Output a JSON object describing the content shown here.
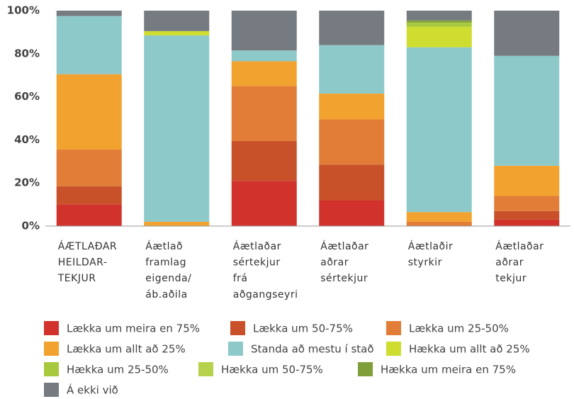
{
  "chart_data": {
    "type": "stacked_bar",
    "categories": [
      [
        "ÁÆTLAÐAR",
        "HEILDAR-",
        "TEKJUR"
      ],
      [
        "Áætlað",
        "framlag",
        "eigenda/",
        "áb.aðila"
      ],
      [
        "Áætlaðar",
        "sértekjur",
        "frá",
        "aðgangseyri"
      ],
      [
        "Áætlaðar",
        "aðrar",
        "sértekjur"
      ],
      [
        "Áætlaðir",
        "styrkir"
      ],
      [
        "Áætlaðar",
        "aðrar",
        "tekjur"
      ]
    ],
    "series": [
      {
        "name": "Lækka um meira en 75%",
        "color": "#d1332c",
        "values": [
          10,
          0,
          21,
          12,
          0,
          3
        ]
      },
      {
        "name": "Lækka um 50-75%",
        "color": "#c9512a",
        "values": [
          8.5,
          0,
          18.5,
          16.5,
          0,
          4
        ]
      },
      {
        "name": "Lækka um 25-50%",
        "color": "#e17d37",
        "values": [
          17,
          0,
          25.5,
          21,
          2,
          7
        ]
      },
      {
        "name": "Lækka um allt að 25%",
        "color": "#f2a22f",
        "values": [
          35,
          2,
          11.5,
          12,
          4.5,
          14
        ]
      },
      {
        "name": "Standa  að mestu í stað",
        "color": "#8ec9c9",
        "values": [
          27,
          86.5,
          5,
          22.5,
          76.5,
          51
        ]
      },
      {
        "name": "Hækka um allt að 25%",
        "color": "#cfdc30",
        "values": [
          0,
          2,
          0,
          0,
          9.5,
          0
        ]
      },
      {
        "name": "Hækka um 25-50%",
        "color": "#a8c83e",
        "values": [
          0,
          0,
          0,
          0,
          2,
          0
        ]
      },
      {
        "name": "Hækka um 50-75%",
        "color": "#b6d14c",
        "values": [
          0,
          0,
          0,
          0,
          0,
          0
        ]
      },
      {
        "name": "Hækka um meira en 75%",
        "color": "#7f9f3a",
        "values": [
          0,
          0,
          0,
          0,
          1,
          0
        ]
      },
      {
        "name": "Á ekki við",
        "color": "#767b82",
        "values": [
          2.5,
          9.5,
          18.5,
          16,
          4.5,
          21
        ]
      }
    ],
    "ylim": [
      0,
      100
    ],
    "yticks": [
      {
        "value": 0,
        "label": "0%"
      },
      {
        "value": 20,
        "label": "20%"
      },
      {
        "value": 40,
        "label": "40%"
      },
      {
        "value": 60,
        "label": "60%"
      },
      {
        "value": 80,
        "label": "80%"
      },
      {
        "value": 100,
        "label": "100%"
      }
    ]
  }
}
